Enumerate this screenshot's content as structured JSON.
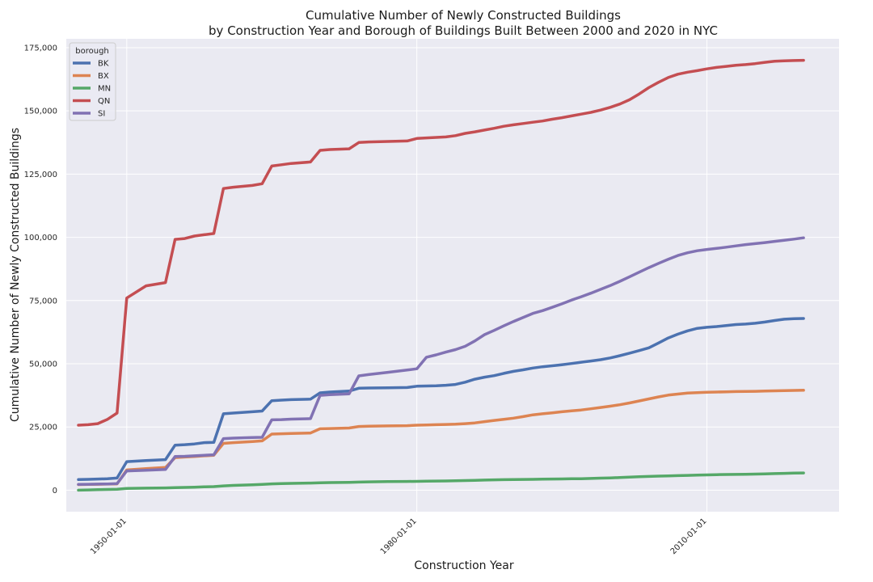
{
  "chart_data": {
    "type": "line",
    "title": "Cumulative Number of Newly Constructed Buildings",
    "subtitle": "by Construction Year and Borough of Buildings Built Between 2000 and 2020 in NYC",
    "xlabel": "Construction Year",
    "ylabel": "Cumulative Number of Newly Constructed Buildings",
    "x_ticks": [
      "1950-01-01",
      "1980-01-01",
      "2010-01-01"
    ],
    "y_ticks": [
      0,
      25000,
      50000,
      75000,
      100000,
      125000,
      150000,
      175000
    ],
    "y_tick_labels": [
      "0",
      "25,000",
      "50,000",
      "75,000",
      "100,000",
      "125,000",
      "150,000",
      "175,000"
    ],
    "xlim": [
      "1943-10-01",
      "2023-09-01"
    ],
    "ylim": [
      -8500,
      178500
    ],
    "grid": true,
    "legend": {
      "title": "borough",
      "placement": "top-left"
    },
    "x": [
      "1945-01-01",
      "1946-01-01",
      "1947-01-01",
      "1948-01-01",
      "1949-01-01",
      "1950-01-01",
      "1952-01-01",
      "1954-01-01",
      "1955-01-01",
      "1956-01-01",
      "1957-01-01",
      "1958-01-01",
      "1959-01-01",
      "1960-01-01",
      "1961-01-01",
      "1963-01-01",
      "1964-01-01",
      "1965-01-01",
      "1966-01-01",
      "1967-01-01",
      "1969-01-01",
      "1970-01-01",
      "1971-01-01",
      "1973-01-01",
      "1974-01-01",
      "1975-01-01",
      "1977-01-01",
      "1979-01-01",
      "1980-01-01",
      "1981-01-01",
      "1982-01-01",
      "1983-01-01",
      "1984-01-01",
      "1985-01-01",
      "1986-01-01",
      "1987-01-01",
      "1988-01-01",
      "1989-01-01",
      "1990-01-01",
      "1991-01-01",
      "1992-01-01",
      "1993-01-01",
      "1994-01-01",
      "1995-01-01",
      "1996-01-01",
      "1997-01-01",
      "1998-01-01",
      "1999-01-01",
      "2000-01-01",
      "2001-01-01",
      "2002-01-01",
      "2003-01-01",
      "2004-01-01",
      "2005-01-01",
      "2006-01-01",
      "2007-01-01",
      "2008-01-01",
      "2009-01-01",
      "2010-01-01",
      "2011-01-01",
      "2012-01-01",
      "2013-01-01",
      "2014-01-01",
      "2015-01-01",
      "2016-01-01",
      "2017-01-01",
      "2018-01-01",
      "2019-01-01",
      "2020-01-01"
    ],
    "series": [
      {
        "name": "BK",
        "color": "#4c72b0",
        "values": [
          4200,
          4300,
          4400,
          4500,
          4800,
          11300,
          11700,
          12100,
          17800,
          18000,
          18300,
          18800,
          18900,
          30200,
          30500,
          31000,
          31300,
          35400,
          35600,
          35800,
          36000,
          38500,
          38800,
          39200,
          40300,
          40400,
          40500,
          40600,
          41100,
          41200,
          41300,
          41500,
          41800,
          42700,
          43900,
          44700,
          45300,
          46200,
          47000,
          47600,
          48300,
          48800,
          49200,
          49600,
          50100,
          50600,
          51100,
          51600,
          52300,
          53200,
          54200,
          55200,
          56300,
          58200,
          60200,
          61700,
          63000,
          64000,
          64400,
          64700,
          65100,
          65500,
          65700,
          66000,
          66500,
          67100,
          67600,
          67800,
          67900
        ]
      },
      {
        "name": "BX",
        "color": "#dd8452",
        "values": [
          2200,
          2300,
          2350,
          2400,
          2500,
          8000,
          8500,
          9000,
          12900,
          13100,
          13300,
          13600,
          13800,
          18500,
          18800,
          19200,
          19500,
          22200,
          22300,
          22400,
          22600,
          24300,
          24400,
          24600,
          25200,
          25300,
          25400,
          25500,
          25700,
          25800,
          25900,
          26000,
          26100,
          26300,
          26600,
          27100,
          27600,
          28000,
          28500,
          29100,
          29800,
          30200,
          30600,
          31000,
          31400,
          31700,
          32200,
          32700,
          33200,
          33800,
          34500,
          35300,
          36100,
          36900,
          37600,
          38000,
          38400,
          38600,
          38700,
          38800,
          38900,
          39000,
          39050,
          39100,
          39200,
          39300,
          39400,
          39450,
          39500
        ]
      },
      {
        "name": "MN",
        "color": "#55a868",
        "values": [
          0,
          100,
          200,
          300,
          400,
          700,
          800,
          900,
          1000,
          1100,
          1200,
          1300,
          1400,
          1700,
          1900,
          2100,
          2300,
          2500,
          2600,
          2700,
          2800,
          2900,
          3000,
          3100,
          3200,
          3300,
          3400,
          3450,
          3500,
          3550,
          3600,
          3650,
          3700,
          3800,
          3900,
          4000,
          4100,
          4150,
          4200,
          4250,
          4300,
          4350,
          4400,
          4450,
          4500,
          4550,
          4650,
          4750,
          4850,
          5000,
          5150,
          5300,
          5450,
          5550,
          5650,
          5750,
          5850,
          5950,
          6050,
          6150,
          6200,
          6250,
          6300,
          6350,
          6450,
          6550,
          6650,
          6750,
          6800
        ]
      },
      {
        "name": "QN",
        "color": "#c44e52",
        "values": [
          25700,
          25900,
          26300,
          28000,
          30500,
          76000,
          80800,
          82100,
          99200,
          99500,
          100500,
          101000,
          101500,
          119300,
          119800,
          120500,
          121200,
          128200,
          128700,
          129200,
          129800,
          134400,
          134700,
          135000,
          137500,
          137700,
          137900,
          138100,
          139100,
          139300,
          139500,
          139700,
          140200,
          141100,
          141700,
          142400,
          143100,
          143900,
          144500,
          145000,
          145500,
          146000,
          146700,
          147300,
          148000,
          148700,
          149400,
          150300,
          151400,
          152700,
          154400,
          156700,
          159200,
          161300,
          163200,
          164500,
          165300,
          165900,
          166600,
          167200,
          167600,
          168000,
          168300,
          168700,
          169200,
          169600,
          169800,
          169900,
          170000
        ]
      },
      {
        "name": "SI",
        "color": "#8172b3",
        "values": [
          2300,
          2350,
          2400,
          2450,
          2600,
          7600,
          7900,
          8200,
          13300,
          13400,
          13600,
          13800,
          14000,
          20400,
          20600,
          20800,
          20900,
          27800,
          27900,
          28100,
          28300,
          37500,
          37800,
          38100,
          45200,
          45700,
          46600,
          47500,
          48000,
          52600,
          53500,
          54600,
          55600,
          56900,
          59000,
          61500,
          63200,
          65000,
          66700,
          68300,
          69900,
          71000,
          72300,
          73700,
          75200,
          76500,
          77900,
          79400,
          80900,
          82600,
          84400,
          86200,
          88000,
          89700,
          91300,
          92800,
          93900,
          94700,
          95200,
          95600,
          96100,
          96600,
          97100,
          97500,
          97900,
          98400,
          98800,
          99300,
          99800
        ]
      }
    ]
  }
}
